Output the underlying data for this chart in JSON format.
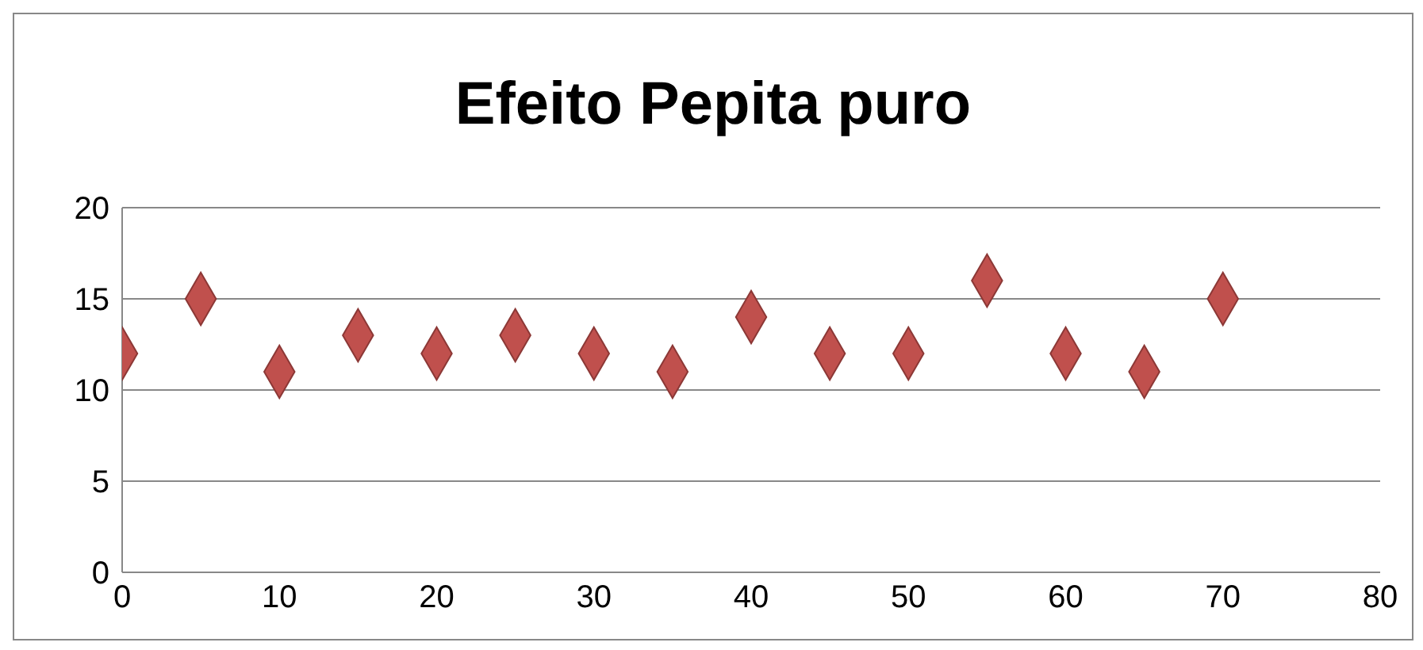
{
  "chart_data": {
    "type": "scatter",
    "title": "Efeito Pepita puro",
    "x": [
      0,
      5,
      10,
      15,
      20,
      25,
      30,
      35,
      40,
      45,
      50,
      55,
      60,
      65,
      70
    ],
    "series": [
      {
        "color": "#c0504d",
        "values": [
          12,
          15,
          11,
          13,
          12,
          13,
          12,
          11,
          14,
          12,
          12,
          16,
          12,
          11,
          15
        ]
      }
    ],
    "xlim": [
      0,
      80
    ],
    "xticks": [
      0,
      10,
      20,
      30,
      40,
      50,
      60,
      70,
      80
    ],
    "ylim": [
      0,
      20
    ],
    "yticks": [
      0,
      5,
      10,
      15,
      20
    ],
    "grid": "y",
    "marker": "diamond"
  }
}
